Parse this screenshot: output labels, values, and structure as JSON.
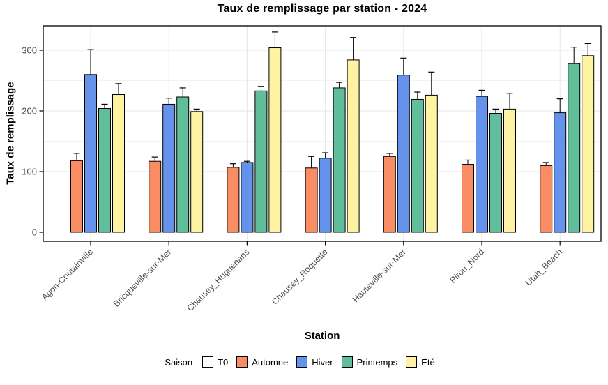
{
  "chart_data": {
    "type": "bar",
    "title": "Taux de remplissage par station  - 2024",
    "xlabel": "Station",
    "ylabel": "Taux de remplissage",
    "legend_title": "Saison",
    "legend_position": "bottom",
    "grid": true,
    "categories": [
      "Agon-Coutainville",
      "Bricqueville-sur-Mer",
      "Chausey_Huguenans",
      "Chausey_Roquette",
      "Hauteville-sur-Mer",
      "Pirou_Nord",
      "Utah_Beach"
    ],
    "series": [
      {
        "name": "T0",
        "color": "#FFFFFF",
        "values": [
          0,
          0,
          0,
          0,
          0,
          0,
          0
        ],
        "error_max": [
          0,
          0,
          0,
          0,
          0,
          0,
          0
        ]
      },
      {
        "name": "Automne",
        "color": "#F98C62",
        "values": [
          118,
          117,
          107,
          106,
          125,
          112,
          110
        ],
        "error_max": [
          130,
          124,
          113,
          125,
          130,
          119,
          115
        ]
      },
      {
        "name": "Hiver",
        "color": "#6592EA",
        "values": [
          260,
          211,
          115,
          122,
          259,
          224,
          197
        ],
        "error_max": [
          301,
          221,
          117,
          131,
          287,
          234,
          220
        ]
      },
      {
        "name": "Printemps",
        "color": "#60BE9B",
        "values": [
          204,
          223,
          233,
          238,
          219,
          196,
          278
        ],
        "error_max": [
          211,
          238,
          240,
          247,
          231,
          203,
          305
        ]
      },
      {
        "name": "Été",
        "color": "#FEF3A2",
        "values": [
          227,
          199,
          304,
          284,
          226,
          203,
          291
        ],
        "error_max": [
          245,
          203,
          330,
          321,
          264,
          229,
          311
        ]
      }
    ],
    "y_ticks": [
      0,
      100,
      200,
      300
    ],
    "y_minor_ticks": [
      50,
      150,
      250
    ],
    "ylim": [
      0,
      340
    ],
    "colors": {
      "bar_border": "#000000",
      "panel_border": "#000000",
      "tick_label": "#4D4D4D",
      "grid_major": "#E6E6E6",
      "grid_minor": "#F2F2F2",
      "background": "#FFFFFF"
    }
  }
}
